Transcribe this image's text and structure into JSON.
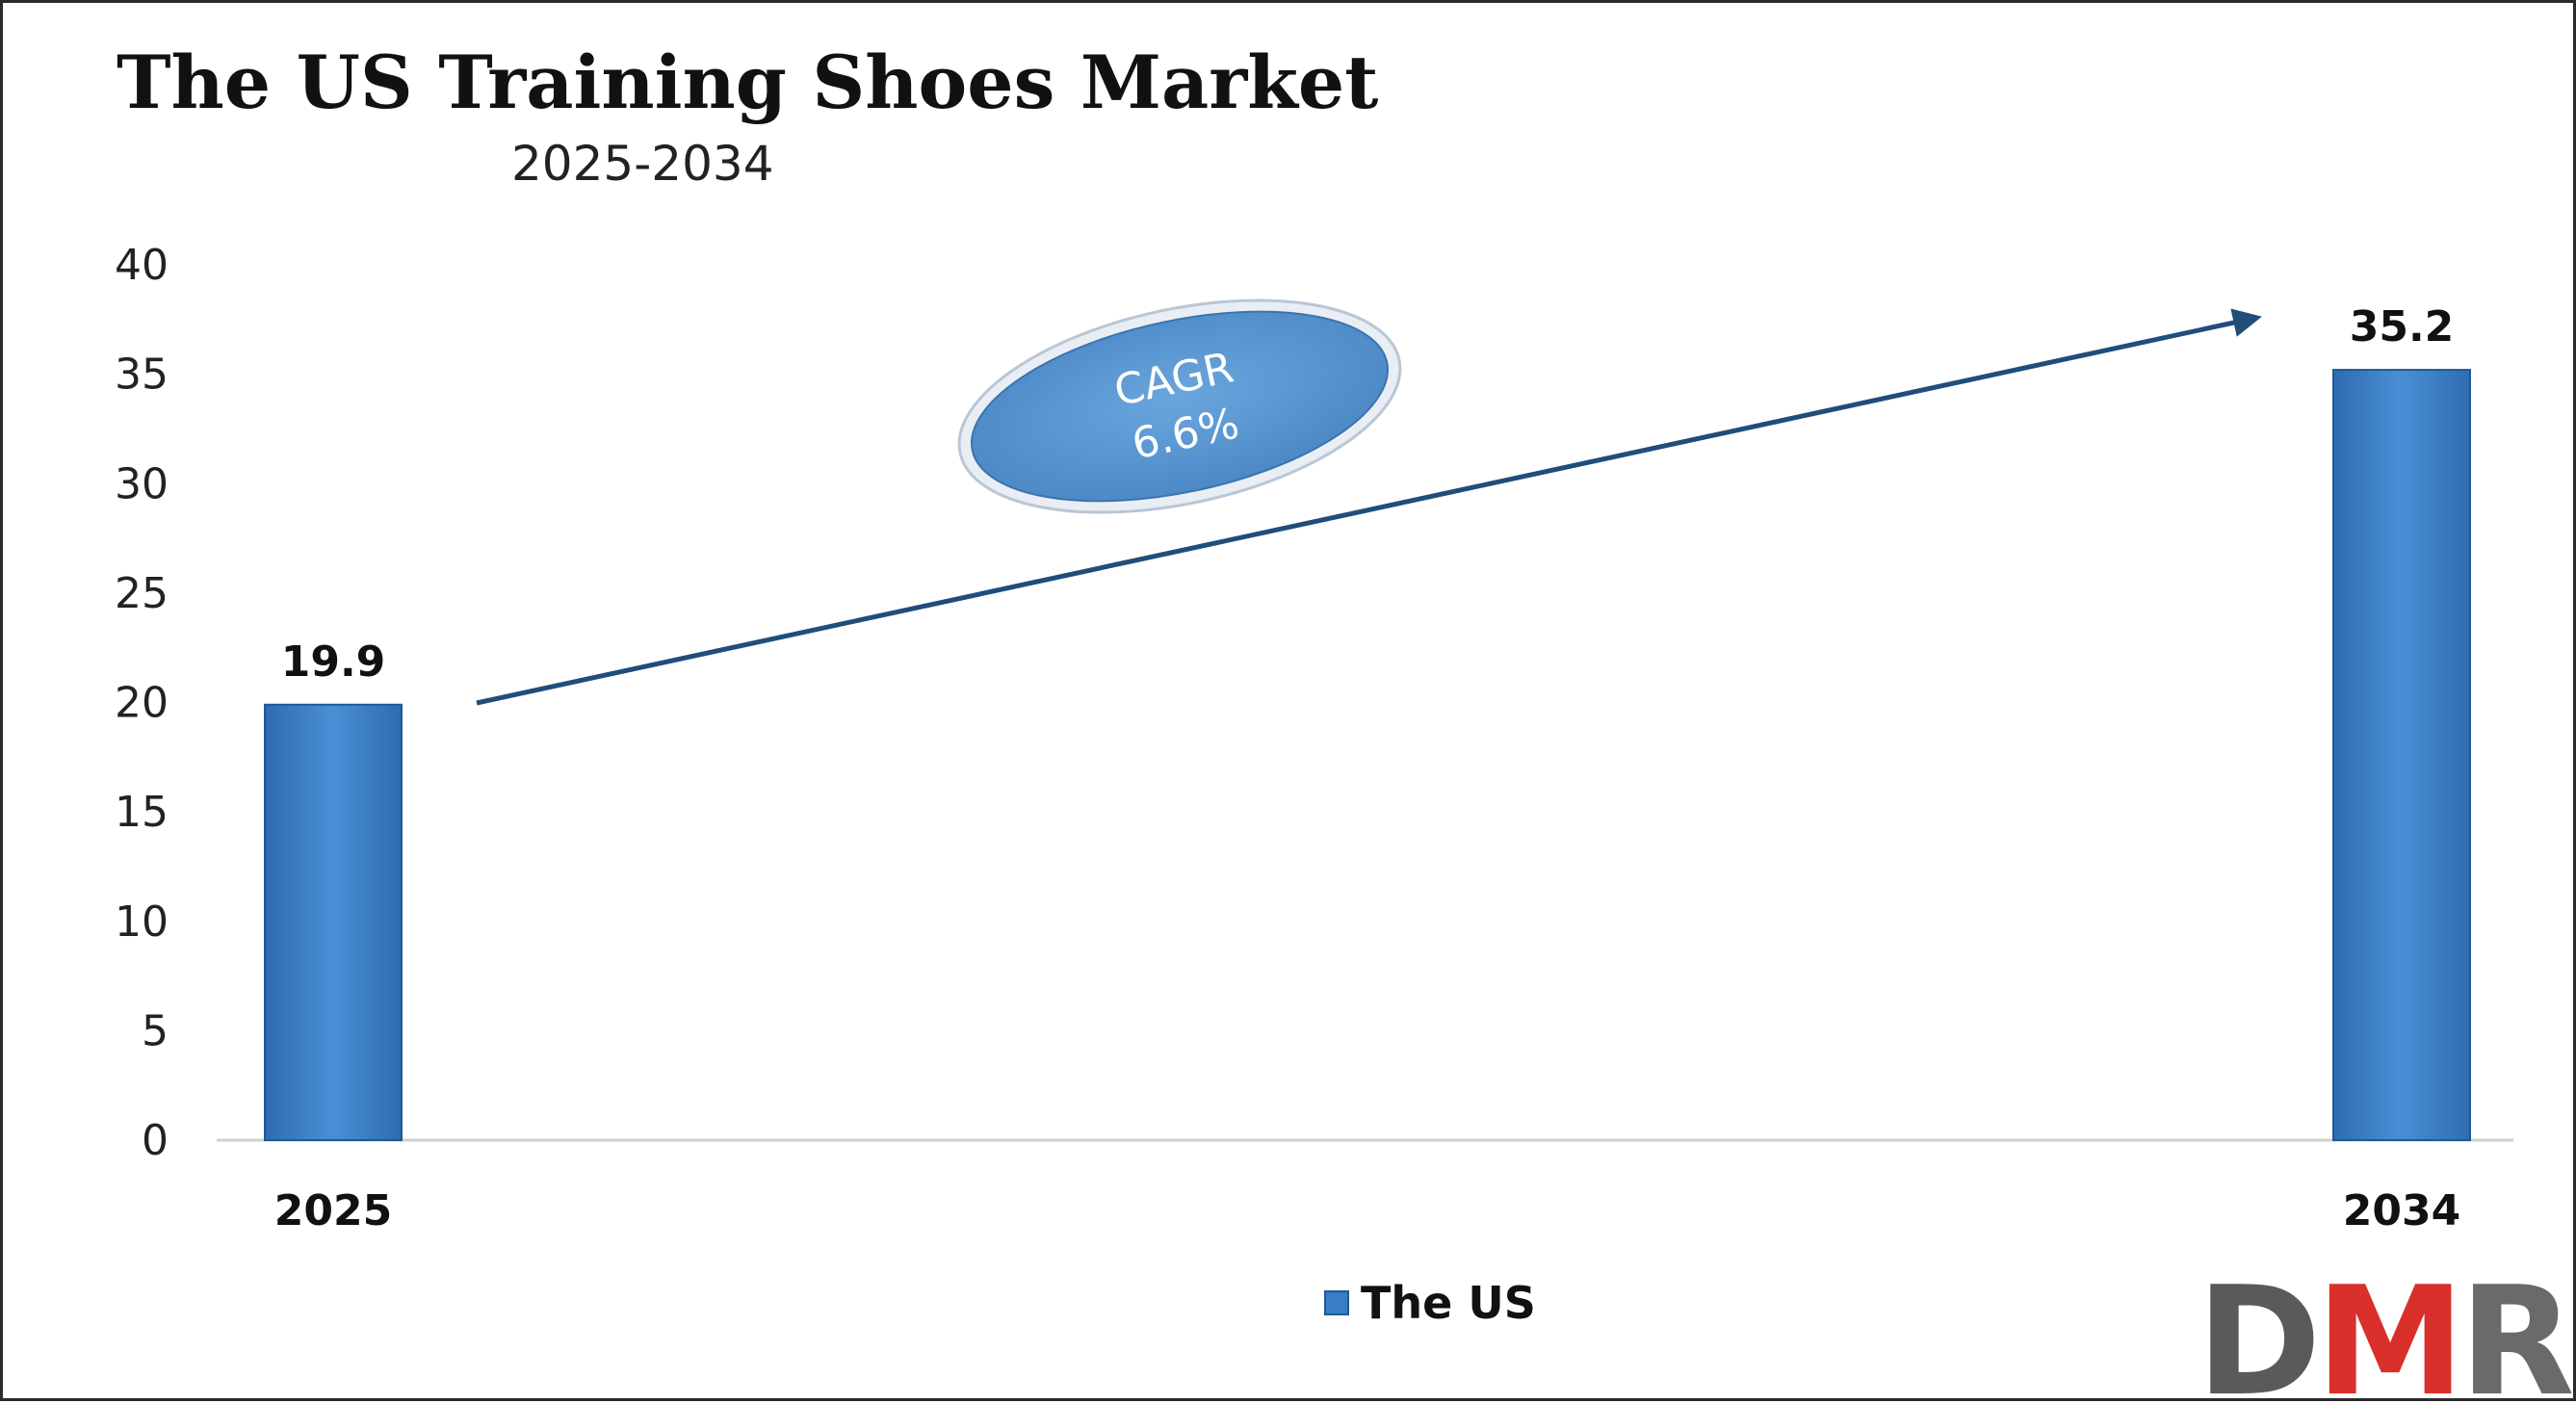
{
  "chart_data": {
    "type": "bar",
    "title": "The US Training Shoes Market",
    "subtitle": "2025-2034",
    "categories": [
      "2025",
      "2034"
    ],
    "series": [
      {
        "name": "The US",
        "values": [
          19.9,
          35.2
        ]
      }
    ],
    "data_labels": [
      "19.9",
      "35.2"
    ],
    "y_ticks": [
      0,
      5,
      10,
      15,
      20,
      25,
      30,
      35,
      40
    ],
    "ylim": [
      0,
      40
    ],
    "xlabel": "",
    "ylabel": "",
    "grid": false,
    "legend": {
      "position": "bottom",
      "label": "The US"
    },
    "annotation": {
      "line1": "CAGR",
      "line2": "6.6%"
    },
    "colors": {
      "bar": "#3a7dc4",
      "bar_edge": "#1f5a96",
      "arrow": "#1f4e79",
      "ellipse": "#5b9bd5"
    }
  },
  "logo": {
    "text": "DMR",
    "colors": [
      "#5a5a5a",
      "#d9302c",
      "#6a6a6a"
    ]
  }
}
